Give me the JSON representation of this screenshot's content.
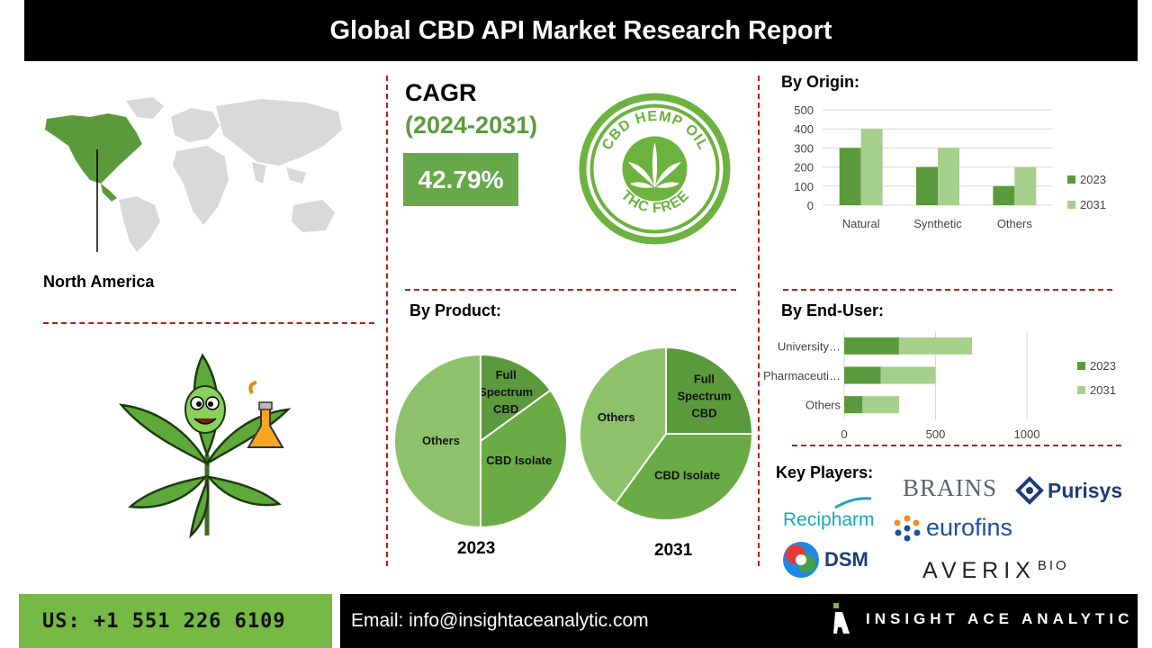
{
  "title": "Global CBD API Market Research Report",
  "region": {
    "label": "North America"
  },
  "cagr": {
    "label": "CAGR",
    "years": "(2024-2031)",
    "value": "42.79%"
  },
  "badge": {
    "top_text": "CBD HEMP OIL",
    "bottom_text": "THC FREE"
  },
  "sections": {
    "origin": "By Origin:",
    "product": "By Product:",
    "end_user": "By End-User:",
    "key_players": "Key Players:"
  },
  "colors": {
    "dark_green": "#5b9a3c",
    "light_green": "#a6cf8c",
    "mid_green": "#6aab45",
    "pale_green": "#8dc26b",
    "accent_red": "#b91c1c"
  },
  "chart_data": [
    {
      "type": "bar",
      "title": "By Origin:",
      "categories": [
        "Natural",
        "Synthetic",
        "Others"
      ],
      "series": [
        {
          "name": "2023",
          "values": [
            300,
            200,
            100
          ]
        },
        {
          "name": "2031",
          "values": [
            400,
            300,
            200
          ]
        }
      ],
      "ylim": [
        0,
        500
      ],
      "yticks": [
        "0",
        "100",
        "200",
        "300",
        "400",
        "500"
      ],
      "grid": true,
      "legend": "right"
    },
    {
      "type": "pie",
      "title": "By Product:",
      "year": "2023",
      "slices": [
        {
          "label": "Full Spectrum CBD",
          "value": 15
        },
        {
          "label": "CBD Isolate",
          "value": 35
        },
        {
          "label": "Others",
          "value": 50
        }
      ]
    },
    {
      "type": "pie",
      "title": "By Product:",
      "year": "2031",
      "slices": [
        {
          "label": "Full Spectrum CBD",
          "value": 25
        },
        {
          "label": "CBD Isolate",
          "value": 35
        },
        {
          "label": "Others",
          "value": 40
        }
      ]
    },
    {
      "type": "bar",
      "orientation": "horizontal",
      "stacked": true,
      "title": "By End-User:",
      "categories": [
        "University…",
        "Pharmaceuti…",
        "Others"
      ],
      "series": [
        {
          "name": "2023",
          "values": [
            300,
            200,
            100
          ]
        },
        {
          "name": "2031",
          "values": [
            400,
            300,
            200
          ]
        }
      ],
      "xlim": [
        0,
        1000
      ],
      "xticks": [
        "0",
        "500",
        "1000"
      ],
      "grid": true,
      "legend": "right"
    }
  ],
  "key_players": {
    "brains": "BRAINS",
    "purisys": "Purisys",
    "recipharm": "Recipharm",
    "eurofins": "eurofins",
    "dsm": "DSM",
    "averix": "AVERIX",
    "averix_sup": "BIO"
  },
  "footer": {
    "phone": "US: +1 551 226 6109",
    "email": "Email: info@insightaceanalytic.com",
    "brand": "INSIGHT ACE ANALYTIC"
  }
}
